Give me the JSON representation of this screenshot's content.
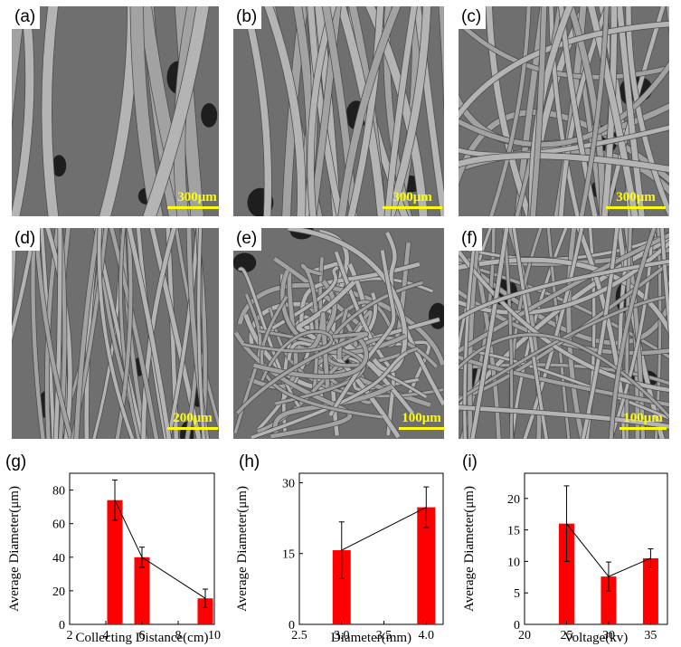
{
  "panels": [
    {
      "label": "(a)",
      "scale": "300μm"
    },
    {
      "label": "(b)",
      "scale": "300μm"
    },
    {
      "label": "(c)",
      "scale": "300μm"
    },
    {
      "label": "(d)",
      "scale": "200μm"
    },
    {
      "label": "(e)",
      "scale": "100μm"
    },
    {
      "label": "(f)",
      "scale": "100μm"
    }
  ],
  "chart_data": [
    {
      "panel_label": "(g)",
      "type": "bar",
      "x": [
        4.5,
        6,
        9.5
      ],
      "values": [
        74,
        40,
        15.5
      ],
      "errors": [
        12,
        6,
        5.5
      ],
      "xlabel": "Collecting Distance(cm)",
      "ylabel": "Average Diameter(μm)",
      "xlim": [
        2,
        10
      ],
      "ylim": [
        0,
        90
      ],
      "xticks": [
        2,
        4,
        6,
        8,
        10
      ],
      "yticks": [
        0,
        20,
        40,
        60,
        80
      ],
      "bar_color": "#ff0000",
      "connect_line": true
    },
    {
      "panel_label": "(h)",
      "type": "bar",
      "x": [
        3.0,
        4.0
      ],
      "values": [
        15.7,
        24.8
      ],
      "errors": [
        6,
        4.3
      ],
      "xlabel": "Diameter(mm)",
      "ylabel": "Average Diameter(μm)",
      "xlim": [
        2.5,
        4.2
      ],
      "ylim": [
        0,
        32
      ],
      "xticks": [
        2.5,
        3.0,
        3.5,
        4.0
      ],
      "yticks": [
        0,
        15,
        30
      ],
      "bar_color": "#ff0000",
      "connect_line": true
    },
    {
      "panel_label": "(i)",
      "type": "bar",
      "x": [
        25,
        30,
        35
      ],
      "values": [
        16,
        7.6,
        10.5
      ],
      "errors": [
        6,
        2.3,
        1.5
      ],
      "xlabel": "Voltage(kv)",
      "ylabel": "Average Diameter(μm)",
      "xlim": [
        20,
        37
      ],
      "ylim": [
        0,
        24
      ],
      "xticks": [
        20,
        25,
        30,
        35
      ],
      "yticks": [
        0,
        5,
        10,
        15,
        20
      ],
      "bar_color": "#ff0000",
      "connect_line": true
    }
  ]
}
